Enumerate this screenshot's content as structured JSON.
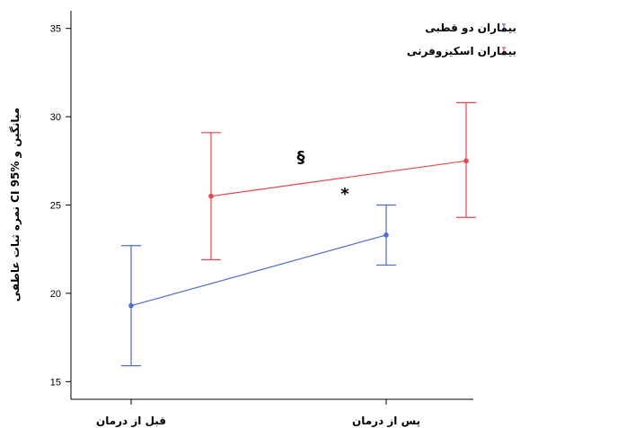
{
  "chart_data": {
    "type": "line",
    "title": "",
    "xlabel": "",
    "ylabel": "میانگین و CI 95% نمره ثبات عاطفی",
    "categories": [
      "قبل از درمان",
      "پس از درمان"
    ],
    "ylim": [
      14,
      36
    ],
    "yticks": [
      15,
      20,
      25,
      30,
      35
    ],
    "grid": false,
    "legend_position": "top-right",
    "series": [
      {
        "name": "بیماران دو قطبی",
        "color": "#4a6fd4",
        "values": [
          19.3,
          23.3
        ],
        "ci_low": [
          15.9,
          21.6
        ],
        "ci_high": [
          22.7,
          25.0
        ]
      },
      {
        "name": "بیماران اسکیزوفرنی",
        "color": "#e8464b",
        "values": [
          25.5,
          27.5
        ],
        "ci_low": [
          21.9,
          24.3
        ],
        "ci_high": [
          29.1,
          30.8
        ]
      }
    ],
    "annotations": [
      "§",
      "*"
    ]
  }
}
